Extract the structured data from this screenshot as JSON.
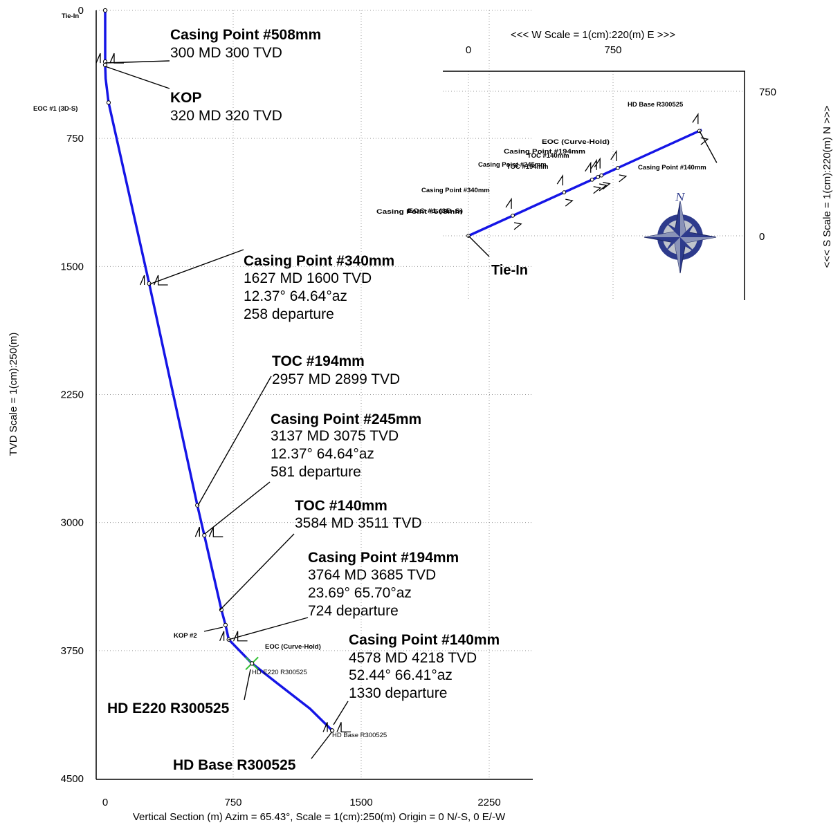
{
  "colors": {
    "trajectory": "#1515e6",
    "grid": "#9a9a9a",
    "compass_blue": "#2e3b8c",
    "compass_grey": "#c0c4cc"
  },
  "chart_data": [
    {
      "type": "line",
      "name": "vertical_section",
      "xlabel": "Vertical Section (m) Azim = 65.43°, Scale = 1(cm):250(m)  Origin = 0 N/-S, 0 E/-W",
      "ylabel": "TVD Scale = 1(cm):250(m)",
      "xlim": [
        -50,
        2500
      ],
      "ylim": [
        0,
        4500
      ],
      "y_inverted": true,
      "grid": true,
      "x_ticks": [
        "0",
        "750",
        "1500",
        "2250"
      ],
      "y_ticks": [
        "0",
        "750",
        "1500",
        "2250",
        "3000",
        "3750",
        "4500"
      ],
      "x_tick_values": [
        0,
        750,
        1500,
        2250
      ],
      "y_tick_values": [
        0,
        750,
        1500,
        2250,
        3000,
        3750,
        4500
      ],
      "series": [
        {
          "x": [
            0,
            0,
            0,
            3,
            20,
            258,
            540,
            581,
            681,
            705,
            724,
            860,
            1000,
            1200,
            1330
          ],
          "y": [
            0,
            300,
            320,
            400,
            540,
            1600,
            2899,
            3075,
            3511,
            3600,
            3685,
            3825,
            3935,
            4090,
            4218
          ]
        }
      ],
      "points": [
        {
          "label": "Tie-In",
          "x": 0,
          "y": 0
        },
        {
          "label": "Casing Point #508mm",
          "x": 0,
          "y": 300
        },
        {
          "label": "KOP",
          "x": 0,
          "y": 320
        },
        {
          "label": "EOC #1 (3D-S)",
          "x": 20,
          "y": 540
        },
        {
          "label": "Casing Point #340mm",
          "x": 258,
          "y": 1600
        },
        {
          "label": "TOC #194mm",
          "x": 540,
          "y": 2899
        },
        {
          "label": "Casing Point #245mm",
          "x": 581,
          "y": 3075
        },
        {
          "label": "TOC #140mm",
          "x": 681,
          "y": 3511
        },
        {
          "label": "KOP #2",
          "x": 705,
          "y": 3600
        },
        {
          "label": "Casing Point #194mm",
          "x": 724,
          "y": 3685
        },
        {
          "label": "EOC (Curve-Hold)",
          "x": 860,
          "y": 3825
        },
        {
          "label": "HD E220 R300525",
          "x": 860,
          "y": 3825
        },
        {
          "label": "Casing Point #140mm",
          "x": 1330,
          "y": 4218
        },
        {
          "label": "HD Base R300525",
          "x": 1330,
          "y": 4218
        }
      ],
      "annotations": [
        {
          "title": "Casing Point #508mm",
          "lines": [
            "300 MD  300 TVD"
          ]
        },
        {
          "title": "KOP",
          "lines": [
            "320 MD  320 TVD"
          ]
        },
        {
          "title": "Casing Point #340mm",
          "lines": [
            "1627 MD  1600 TVD",
            "12.37°  64.64°az",
            "258 departure"
          ]
        },
        {
          "title": "TOC #194mm",
          "lines": [
            "2957 MD  2899 TVD"
          ]
        },
        {
          "title": "Casing Point #245mm",
          "lines": [
            "3137 MD  3075 TVD",
            "12.37°  64.64°az",
            "581 departure"
          ]
        },
        {
          "title": "TOC #140mm",
          "lines": [
            "3584 MD  3511 TVD"
          ]
        },
        {
          "title": "Casing Point #194mm",
          "lines": [
            "3764 MD  3685 TVD",
            "23.69°  65.70°az",
            "724 departure"
          ]
        },
        {
          "title": "Casing Point #140mm",
          "lines": [
            "4578 MD  4218 TVD",
            "52.44°  66.41°az",
            "1330 departure"
          ]
        },
        {
          "title": "HD E220 R300525",
          "lines": []
        },
        {
          "title": "HD Base R300525",
          "lines": []
        }
      ],
      "small_labels": {
        "tie_in": "Tie-In",
        "eoc1": "EOC #1 (3D-S)",
        "kop2": "KOP #2",
        "eoc_curve": "EOC (Curve-Hold)",
        "hd_e220_small": "HD E220 R300525",
        "hd_base_small": "HD Base R300525"
      }
    },
    {
      "type": "line",
      "name": "plan_view",
      "title": "<<<  W   Scale = 1(cm):220(m)   E  >>>",
      "ylabel": "<<<  S   Scale = 1(cm):220(m)   N  >>>",
      "x_ticks": [
        "0",
        "750"
      ],
      "y_ticks": [
        "750",
        "0"
      ],
      "x_tick_values": [
        0,
        750
      ],
      "y_tick_values": [
        750,
        0
      ],
      "grid": true,
      "series": [
        {
          "x": [
            0,
            1210
          ],
          "y": [
            0,
            550
          ]
        }
      ],
      "labels": {
        "tie_in": "Tie-In",
        "hd_base": "HD Base R300525",
        "cp140": "Casing Point #140mm",
        "eoc_hd": "EOC (Curve-Hold)",
        "cp194": "Casing Point #194mm",
        "toc140": "TOC #140mm",
        "cp245": "Casing Point #245mm",
        "toc194": "TOC #194mm",
        "cp340": "Casing Point #340mm",
        "cp508": "Casing Point #508mm",
        "eoc1": "EOC #1 (3D-S)"
      },
      "compass_letter": "N"
    }
  ]
}
